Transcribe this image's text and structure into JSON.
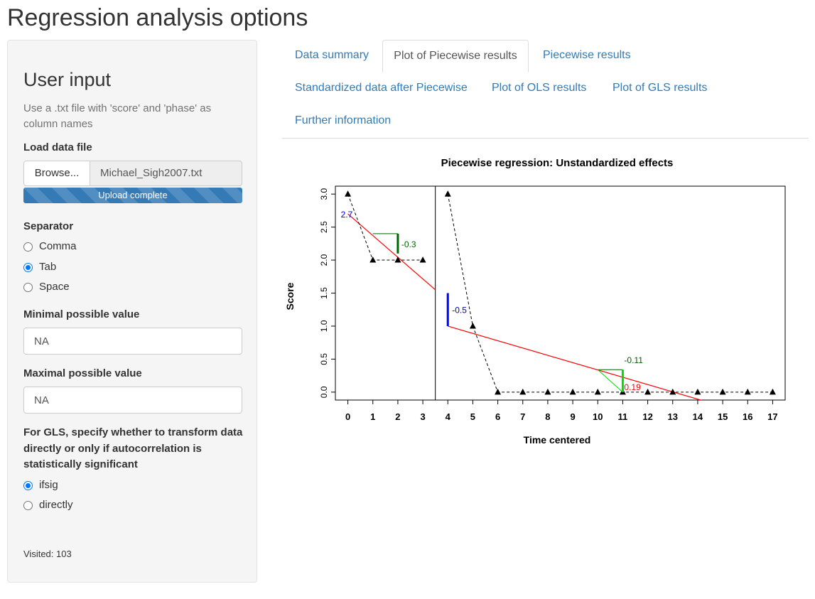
{
  "page": {
    "title": "Regression analysis options"
  },
  "sidebar": {
    "heading": "User input",
    "help_text": "Use a .txt file with 'score' and 'phase' as column names",
    "file": {
      "label": "Load data file",
      "browse_label": "Browse...",
      "filename": "Michael_Sigh2007.txt",
      "progress_text": "Upload complete",
      "progress": 1.0
    },
    "separator": {
      "label": "Separator",
      "options": [
        "Comma",
        "Tab",
        "Space"
      ],
      "selected": "Tab"
    },
    "min_value": {
      "label": "Minimal possible value",
      "value": "NA"
    },
    "max_value": {
      "label": "Maximal possible value",
      "value": "NA"
    },
    "gls": {
      "label": "For GLS, specify whether to transform data directly or only if autocorrelation is statistically significant",
      "options": [
        "ifsig",
        "directly"
      ],
      "selected": "ifsig"
    },
    "visited": "Visited: 103"
  },
  "tabs": {
    "items": [
      "Data summary",
      "Plot of Piecewise results",
      "Piecewise results",
      "Standardized data after Piecewise",
      "Plot of OLS results",
      "Plot of GLS results",
      "Further information"
    ],
    "active": "Plot of Piecewise results"
  },
  "chart_data": {
    "type": "scatter",
    "title": "Piecewise regression: Unstandardized effects",
    "xlabel": "Time centered",
    "ylabel": "Score",
    "xlim": [
      -0.5,
      17.5
    ],
    "ylim": [
      -0.12,
      3.12
    ],
    "x_ticks": [
      0,
      1,
      2,
      3,
      4,
      5,
      6,
      7,
      8,
      9,
      10,
      11,
      12,
      13,
      14,
      15,
      16,
      17
    ],
    "y_ticks": [
      0.0,
      0.5,
      1.0,
      1.5,
      2.0,
      2.5,
      3.0
    ],
    "y_tick_labels": [
      "0.0",
      "0.5",
      "1.0",
      "1.5",
      "2.0",
      "2.5",
      "3.0"
    ],
    "phase_change_x": 3.5,
    "series": [
      {
        "values": [
          3,
          2,
          2,
          2,
          3,
          1,
          0,
          0,
          0,
          0,
          0,
          0,
          0,
          0,
          0,
          0,
          0,
          0
        ],
        "x": [
          0,
          1,
          2,
          3,
          4,
          5,
          6,
          7,
          8,
          9,
          10,
          11,
          12,
          13,
          14,
          15,
          16,
          17
        ]
      }
    ],
    "fit_lines": [
      {
        "x": [
          0,
          3.5
        ],
        "y": [
          2.7,
          1.55
        ],
        "color": "#ff0000"
      },
      {
        "x": [
          4,
          14.3
        ],
        "y": [
          1.0,
          -0.14
        ],
        "color": "#ff0000"
      }
    ],
    "annotations": [
      {
        "text": "2.7",
        "x": 0,
        "y": 2.7,
        "color": "#0000cd"
      },
      {
        "text": "-0.3",
        "x": 2,
        "y": 2.24,
        "color": "#006400"
      },
      {
        "text": "-0.5",
        "x": 4,
        "y": 1.24,
        "color": "#0000cd"
      },
      {
        "text": "-0.11",
        "x": 11,
        "y": 0.44,
        "color": "#006400"
      },
      {
        "text": "0.19",
        "x": 11,
        "y": 0.03,
        "color": "#ff0000"
      }
    ],
    "colors": {
      "points": "#000000",
      "fit": "#ff0000",
      "intercept": "#0000ff",
      "slope1": "#006400",
      "slope2": "#00dd00"
    }
  }
}
